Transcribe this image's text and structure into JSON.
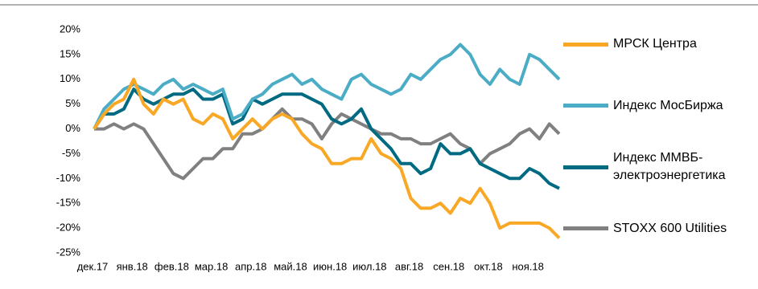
{
  "chart_data": {
    "type": "line",
    "categories": [
      "дек.17",
      null,
      null,
      null,
      "янв.18",
      null,
      null,
      null,
      "фев.18",
      null,
      null,
      null,
      "мар.18",
      null,
      null,
      null,
      "апр.18",
      null,
      null,
      null,
      "май.18",
      null,
      null,
      null,
      "июн.18",
      null,
      null,
      null,
      "июл.18",
      null,
      null,
      null,
      "авг.18",
      null,
      null,
      null,
      "сен.18",
      null,
      null,
      null,
      "окт.18",
      null,
      null,
      null,
      "ноя.18",
      null,
      null,
      null
    ],
    "series": [
      {
        "name": "МРСК Центра",
        "color": "#f9a825",
        "values": [
          0,
          3,
          5,
          6,
          10,
          5,
          3,
          6,
          5,
          6,
          2,
          1,
          3,
          2,
          -2,
          0,
          2,
          0,
          2,
          3,
          2,
          -1,
          -3,
          -4,
          -7,
          -7,
          -6,
          -6,
          -2,
          -5,
          -6,
          -8,
          -14,
          -16,
          -16,
          -15,
          -17,
          -14,
          -15,
          -12,
          -15,
          -20,
          -19,
          -19,
          -19,
          -19,
          -20,
          -22
        ]
      },
      {
        "name": "Индекс МосБиржа",
        "color": "#4bacc6",
        "values": [
          0,
          4,
          6,
          8,
          9,
          8,
          7,
          9,
          10,
          8,
          9,
          8,
          7,
          8,
          2,
          3,
          6,
          7,
          9,
          10,
          11,
          9,
          10,
          8,
          7,
          6,
          10,
          11,
          9,
          8,
          7,
          8,
          11,
          10,
          12,
          14,
          15,
          17,
          15,
          11,
          9,
          12,
          10,
          9,
          15,
          14,
          12,
          10
        ]
      },
      {
        "name": "Индекс ММВБ-\nэлектроэнергетика",
        "color": "#006a82",
        "values": [
          0,
          3,
          3,
          4,
          8,
          6,
          5,
          6,
          7,
          7,
          8,
          6,
          6,
          7,
          1,
          2,
          6,
          5,
          6,
          7,
          7,
          7,
          6,
          5,
          2,
          1,
          2,
          4,
          0,
          -2,
          -4,
          -7,
          -7,
          -9,
          -8,
          -3,
          -5,
          -5,
          -4,
          -7,
          -8,
          -9,
          -10,
          -10,
          -8,
          -9,
          -11,
          -12
        ]
      },
      {
        "name": "STOXX 600 Utilities",
        "color": "#808080",
        "values": [
          0,
          0,
          1,
          0,
          1,
          0,
          -3,
          -6,
          -9,
          -10,
          -8,
          -6,
          -6,
          -4,
          -4,
          -1,
          -1,
          0,
          2,
          4,
          2,
          2,
          1,
          -2,
          1,
          3,
          2,
          1,
          0,
          -1,
          -1,
          -2,
          -2,
          -3,
          -3,
          -2,
          -1,
          -3,
          -4,
          -7,
          -5,
          -4,
          -3,
          -1,
          0,
          -2,
          1,
          -1
        ]
      }
    ],
    "ylim": [
      -25,
      20
    ],
    "yticks": [
      {
        "value": -25,
        "label": "-25%"
      },
      {
        "value": -20,
        "label": "-20%"
      },
      {
        "value": -15,
        "label": "-15%"
      },
      {
        "value": -10,
        "label": "-10%"
      },
      {
        "value": -5,
        "label": "-5%"
      },
      {
        "value": 0,
        "label": "0%"
      },
      {
        "value": 5,
        "label": "5%"
      },
      {
        "value": 10,
        "label": "10%"
      },
      {
        "value": 15,
        "label": "15%"
      },
      {
        "value": 20,
        "label": "20%"
      }
    ],
    "legend": "right"
  }
}
